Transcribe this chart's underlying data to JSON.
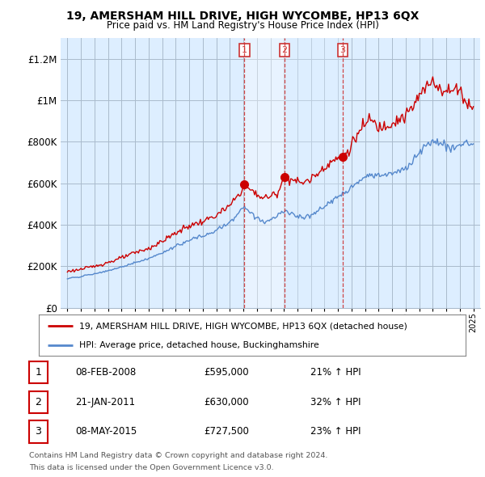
{
  "title": "19, AMERSHAM HILL DRIVE, HIGH WYCOMBE, HP13 6QX",
  "subtitle": "Price paid vs. HM Land Registry's House Price Index (HPI)",
  "ylim": [
    0,
    1300000
  ],
  "yticks": [
    0,
    200000,
    400000,
    600000,
    800000,
    1000000,
    1200000
  ],
  "ytick_labels": [
    "£0",
    "£200K",
    "£400K",
    "£600K",
    "£800K",
    "£1M",
    "£1.2M"
  ],
  "background_color": "#ffffff",
  "chart_bg_color": "#ddeeff",
  "grid_color": "#aabbcc",
  "line_color_red": "#cc0000",
  "line_color_blue": "#5588cc",
  "vline_color": "#cc3333",
  "shade_color": "#bbccee",
  "transactions": [
    {
      "label": "1",
      "date_num": 2008.08,
      "price": 595000,
      "hpi_pct": "21% ↑ HPI",
      "date_str": "08-FEB-2008"
    },
    {
      "label": "2",
      "date_num": 2011.05,
      "price": 630000,
      "hpi_pct": "32% ↑ HPI",
      "date_str": "21-JAN-2011"
    },
    {
      "label": "3",
      "date_num": 2015.35,
      "price": 727500,
      "hpi_pct": "23% ↑ HPI",
      "date_str": "08-MAY-2015"
    }
  ],
  "legend_red": "19, AMERSHAM HILL DRIVE, HIGH WYCOMBE, HP13 6QX (detached house)",
  "legend_blue": "HPI: Average price, detached house, Buckinghamshire",
  "footer1": "Contains HM Land Registry data © Crown copyright and database right 2024.",
  "footer2": "This data is licensed under the Open Government Licence v3.0.",
  "xmin": 1994.5,
  "xmax": 2025.5
}
